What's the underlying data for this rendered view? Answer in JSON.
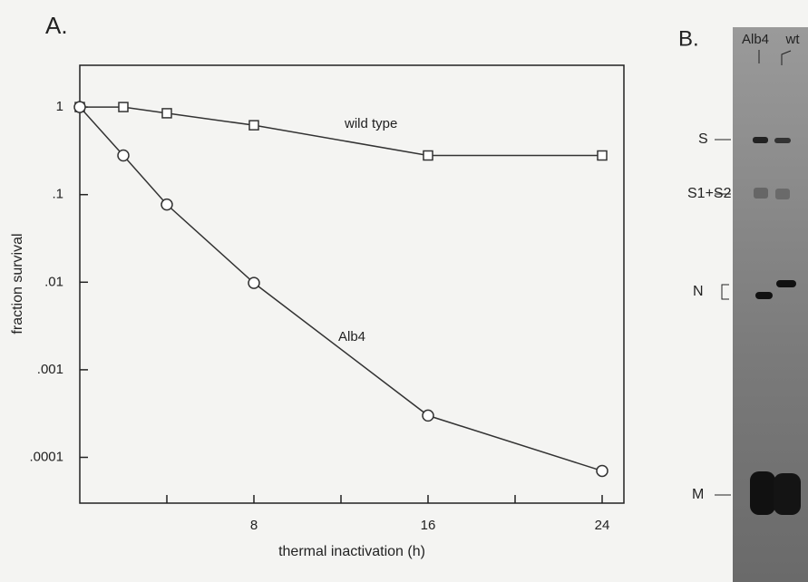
{
  "chart_data": {
    "type": "line",
    "panel_label": "A.",
    "xlabel": "thermal inactivation  (h)",
    "ylabel": "fraction survival",
    "xlim": [
      0,
      25
    ],
    "xticks": [
      8,
      16,
      24
    ],
    "minor_xticks": [
      4,
      12,
      20
    ],
    "ylim": [
      3e-05,
      3
    ],
    "log_y": true,
    "yticks": [
      {
        "value": 1,
        "label": "1"
      },
      {
        "value": 0.1,
        "label": ".1"
      },
      {
        "value": 0.01,
        "label": ".01"
      },
      {
        "value": 0.001,
        "label": ".001"
      },
      {
        "value": 0.0001,
        "label": ".0001"
      }
    ],
    "series": [
      {
        "name": "wild type",
        "marker": "square",
        "color": "#333333",
        "x": [
          0,
          2,
          4,
          8,
          16,
          24
        ],
        "values": [
          1,
          1,
          0.85,
          0.62,
          0.28,
          0.28
        ]
      },
      {
        "name": "Alb4",
        "marker": "circle",
        "color": "#333333",
        "x": [
          0,
          2,
          4,
          8,
          16,
          24
        ],
        "values": [
          1,
          0.28,
          0.077,
          0.0098,
          0.0003,
          7e-05
        ]
      }
    ]
  },
  "panel_b": {
    "panel_label": "B.",
    "lanes": [
      "Alb4",
      "wt"
    ],
    "bands": [
      "S",
      "S1+S2",
      "N",
      "M"
    ]
  }
}
